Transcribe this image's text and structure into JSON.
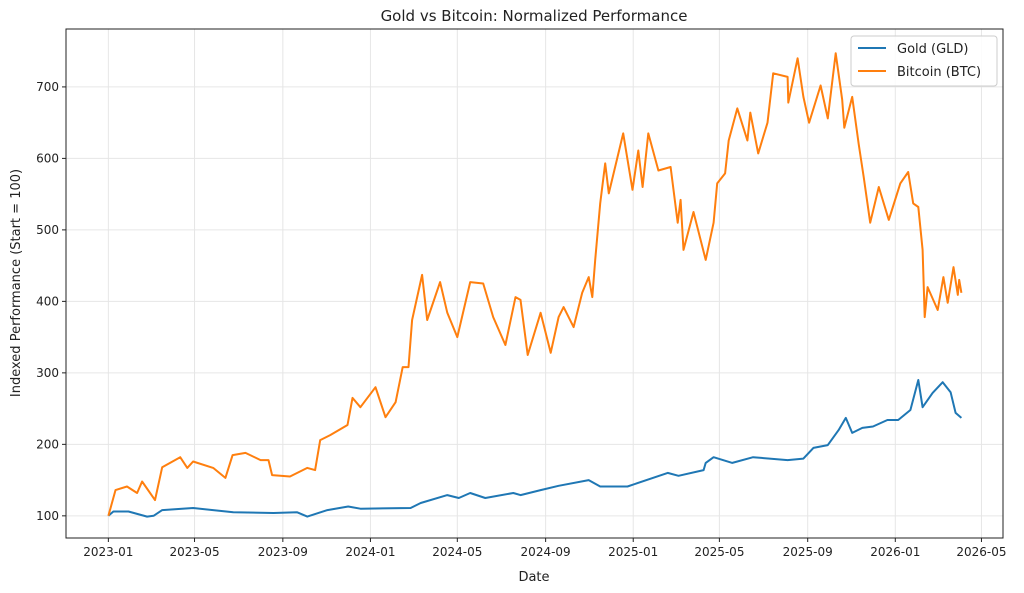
{
  "chart_data": {
    "type": "line",
    "title": "Gold vs Bitcoin: Normalized Performance",
    "xlabel": "Date",
    "ylabel": "Indexed Performance (Start = 100)",
    "xlim": [
      "2022-11-03",
      "2026-05-31"
    ],
    "ylim": [
      69,
      781
    ],
    "grid": true,
    "legend_position": "top-right",
    "x_ticks": [
      "2023-01",
      "2023-05",
      "2023-09",
      "2024-01",
      "2024-05",
      "2024-09",
      "2025-01",
      "2025-05",
      "2025-09",
      "2026-01",
      "2026-05"
    ],
    "y_ticks": [
      100,
      200,
      300,
      400,
      500,
      600,
      700
    ],
    "series": [
      {
        "name": "Gold (GLD)",
        "color": "#1f77b4",
        "points": [
          [
            "2023-01-01",
            100
          ],
          [
            "2023-01-08",
            106
          ],
          [
            "2023-01-29",
            106
          ],
          [
            "2023-02-24",
            99
          ],
          [
            "2023-03-05",
            100
          ],
          [
            "2023-03-17",
            108
          ],
          [
            "2023-04-29",
            111
          ],
          [
            "2023-06-24",
            105
          ],
          [
            "2023-08-19",
            104
          ],
          [
            "2023-09-21",
            105
          ],
          [
            "2023-10-05",
            99
          ],
          [
            "2023-11-02",
            108
          ],
          [
            "2023-12-01",
            113
          ],
          [
            "2023-12-18",
            110
          ],
          [
            "2024-02-26",
            111
          ],
          [
            "2024-03-11",
            118
          ],
          [
            "2024-04-17",
            129
          ],
          [
            "2024-05-03",
            125
          ],
          [
            "2024-05-19",
            132
          ],
          [
            "2024-06-09",
            125
          ],
          [
            "2024-07-18",
            132
          ],
          [
            "2024-07-28",
            129
          ],
          [
            "2024-08-25",
            136
          ],
          [
            "2024-09-19",
            142
          ],
          [
            "2024-10-31",
            150
          ],
          [
            "2024-11-16",
            141
          ],
          [
            "2024-12-24",
            141
          ],
          [
            "2025-02-18",
            160
          ],
          [
            "2025-03-05",
            156
          ],
          [
            "2025-04-09",
            164
          ],
          [
            "2025-04-12",
            174
          ],
          [
            "2025-04-23",
            182
          ],
          [
            "2025-05-19",
            174
          ],
          [
            "2025-06-17",
            182
          ],
          [
            "2025-08-04",
            178
          ],
          [
            "2025-08-26",
            180
          ],
          [
            "2025-09-09",
            195
          ],
          [
            "2025-09-29",
            199
          ],
          [
            "2025-10-14",
            220
          ],
          [
            "2025-10-24",
            237
          ],
          [
            "2025-11-02",
            216
          ],
          [
            "2025-11-16",
            223
          ],
          [
            "2025-12-01",
            225
          ],
          [
            "2025-12-21",
            234
          ],
          [
            "2026-01-05",
            234
          ],
          [
            "2026-01-22",
            248
          ],
          [
            "2026-02-02",
            290
          ],
          [
            "2026-02-08",
            252
          ],
          [
            "2026-02-22",
            272
          ],
          [
            "2026-03-08",
            287
          ],
          [
            "2026-03-19",
            273
          ],
          [
            "2026-03-26",
            244
          ],
          [
            "2026-04-03",
            237
          ]
        ]
      },
      {
        "name": "Bitcoin (BTC)",
        "color": "#ff7f0e",
        "points": [
          [
            "2023-01-01",
            100
          ],
          [
            "2023-01-11",
            136
          ],
          [
            "2023-01-27",
            141
          ],
          [
            "2023-02-10",
            132
          ],
          [
            "2023-02-17",
            148
          ],
          [
            "2023-03-07",
            122
          ],
          [
            "2023-03-17",
            168
          ],
          [
            "2023-04-11",
            182
          ],
          [
            "2023-04-21",
            167
          ],
          [
            "2023-04-29",
            176
          ],
          [
            "2023-05-27",
            167
          ],
          [
            "2023-06-13",
            153
          ],
          [
            "2023-06-23",
            185
          ],
          [
            "2023-07-11",
            188
          ],
          [
            "2023-08-01",
            178
          ],
          [
            "2023-08-12",
            178
          ],
          [
            "2023-08-17",
            157
          ],
          [
            "2023-09-11",
            155
          ],
          [
            "2023-10-05",
            167
          ],
          [
            "2023-10-16",
            164
          ],
          [
            "2023-10-23",
            206
          ],
          [
            "2023-11-06",
            213
          ],
          [
            "2023-11-30",
            227
          ],
          [
            "2023-12-07",
            265
          ],
          [
            "2023-12-18",
            252
          ],
          [
            "2024-01-08",
            280
          ],
          [
            "2024-01-22",
            238
          ],
          [
            "2024-02-05",
            259
          ],
          [
            "2024-02-15",
            308
          ],
          [
            "2024-02-23",
            308
          ],
          [
            "2024-02-28",
            374
          ],
          [
            "2024-03-13",
            437
          ],
          [
            "2024-03-20",
            374
          ],
          [
            "2024-04-07",
            427
          ],
          [
            "2024-04-17",
            384
          ],
          [
            "2024-05-01",
            350
          ],
          [
            "2024-05-19",
            427
          ],
          [
            "2024-06-06",
            425
          ],
          [
            "2024-06-20",
            378
          ],
          [
            "2024-07-07",
            339
          ],
          [
            "2024-07-21",
            406
          ],
          [
            "2024-07-28",
            402
          ],
          [
            "2024-08-07",
            325
          ],
          [
            "2024-08-25",
            384
          ],
          [
            "2024-09-08",
            328
          ],
          [
            "2024-09-19",
            378
          ],
          [
            "2024-09-26",
            392
          ],
          [
            "2024-10-10",
            364
          ],
          [
            "2024-10-22",
            412
          ],
          [
            "2024-10-31",
            434
          ],
          [
            "2024-11-05",
            406
          ],
          [
            "2024-11-09",
            458
          ],
          [
            "2024-11-16",
            537
          ],
          [
            "2024-11-23",
            593
          ],
          [
            "2024-11-28",
            551
          ],
          [
            "2024-12-18",
            635
          ],
          [
            "2024-12-31",
            556
          ],
          [
            "2025-01-08",
            611
          ],
          [
            "2025-01-14",
            560
          ],
          [
            "2025-01-22",
            635
          ],
          [
            "2025-02-05",
            583
          ],
          [
            "2025-02-22",
            588
          ],
          [
            "2025-03-04",
            510
          ],
          [
            "2025-03-08",
            542
          ],
          [
            "2025-03-12",
            472
          ],
          [
            "2025-03-26",
            525
          ],
          [
            "2025-04-12",
            458
          ],
          [
            "2025-04-23",
            510
          ],
          [
            "2025-04-28",
            565
          ],
          [
            "2025-05-09",
            579
          ],
          [
            "2025-05-14",
            625
          ],
          [
            "2025-05-26",
            670
          ],
          [
            "2025-06-09",
            625
          ],
          [
            "2025-06-13",
            664
          ],
          [
            "2025-06-24",
            607
          ],
          [
            "2025-07-07",
            650
          ],
          [
            "2025-07-15",
            719
          ],
          [
            "2025-08-04",
            714
          ],
          [
            "2025-08-05",
            678
          ],
          [
            "2025-08-18",
            740
          ],
          [
            "2025-08-26",
            686
          ],
          [
            "2025-09-03",
            650
          ],
          [
            "2025-09-19",
            702
          ],
          [
            "2025-09-29",
            656
          ],
          [
            "2025-10-10",
            747
          ],
          [
            "2025-10-19",
            682
          ],
          [
            "2025-10-22",
            643
          ],
          [
            "2025-11-02",
            686
          ],
          [
            "2025-11-11",
            620
          ],
          [
            "2025-11-18",
            574
          ],
          [
            "2025-11-27",
            510
          ],
          [
            "2025-12-09",
            560
          ],
          [
            "2025-12-23",
            514
          ],
          [
            "2026-01-08",
            565
          ],
          [
            "2026-01-19",
            581
          ],
          [
            "2026-01-26",
            537
          ],
          [
            "2026-02-02",
            532
          ],
          [
            "2026-02-08",
            472
          ],
          [
            "2026-02-11",
            378
          ],
          [
            "2026-02-15",
            420
          ],
          [
            "2026-03-01",
            388
          ],
          [
            "2026-03-09",
            434
          ],
          [
            "2026-03-15",
            398
          ],
          [
            "2026-03-23",
            448
          ],
          [
            "2026-03-29",
            409
          ],
          [
            "2026-03-31",
            430
          ],
          [
            "2026-04-03",
            412
          ]
        ]
      }
    ]
  }
}
